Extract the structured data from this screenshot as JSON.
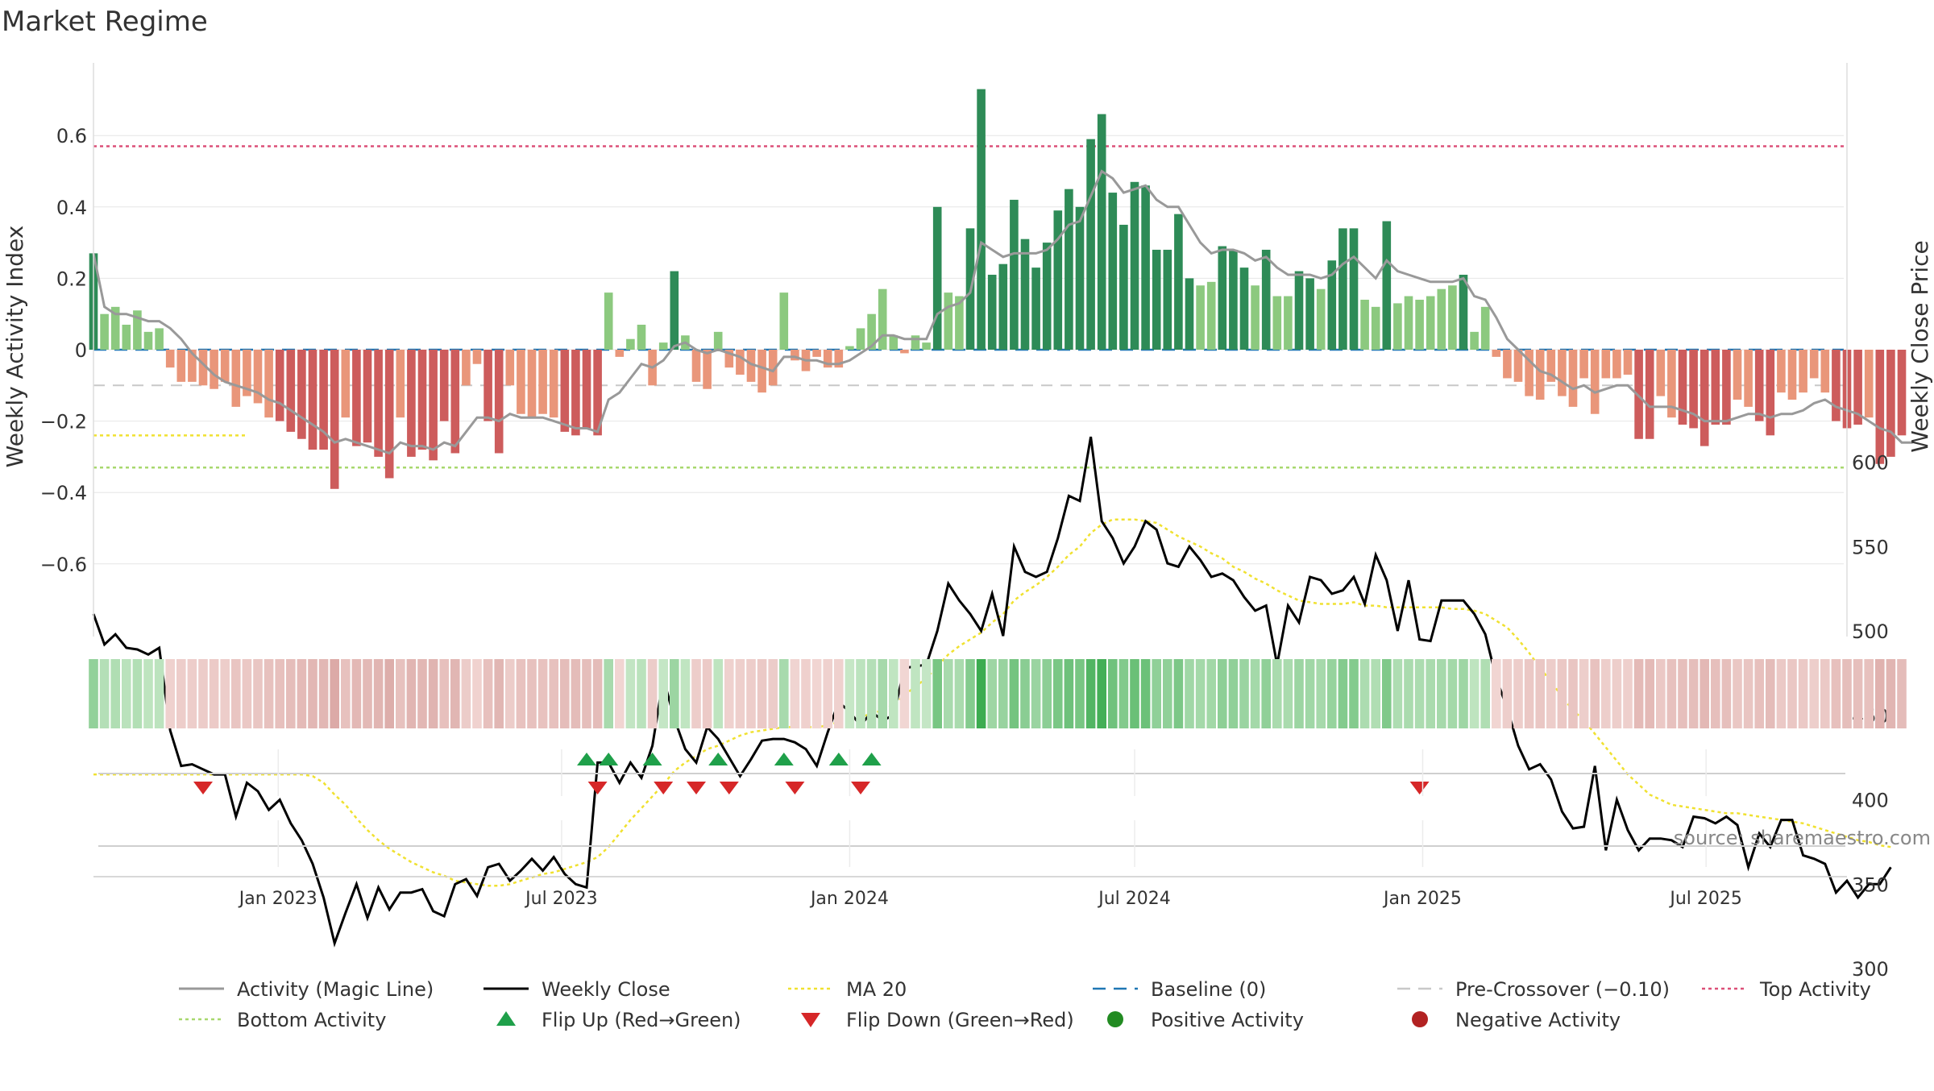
{
  "title": "Market Regime",
  "source": "source: sharemaestro.com",
  "colors": {
    "pos_strong": "#2e8b57",
    "pos_weak": "#8cc97f",
    "neg_strong": "#cd5c5c",
    "neg_weak": "#e9967a",
    "close": "#000000",
    "magic": "#999999",
    "ma20": "#f0e130",
    "baseline": "#1f77b4",
    "precross": "#c8c8c8",
    "top": "#dc5078",
    "bottom": "#a8d86e",
    "flip_up": "#1fa04a",
    "flip_down": "#d62728",
    "pos_dot": "#228b22",
    "neg_dot": "#b22222"
  },
  "chart_data": {
    "type": "bar",
    "title": "Market Regime",
    "xlabel": "",
    "ylabel": "Weekly Activity Index",
    "y2label": "Weekly Close Price",
    "ylim": [
      -0.8,
      0.8
    ],
    "y2lim": [
      300,
      630
    ],
    "yticks": [
      0.6,
      0.4,
      0.2,
      0,
      -0.2,
      -0.4,
      -0.6
    ],
    "yticklabels": [
      "0.6",
      "0.4",
      "0.2",
      "0",
      "−0.2",
      "−0.4",
      "−0.6"
    ],
    "y2ticks": [
      600,
      550,
      500,
      450,
      400,
      350,
      300
    ],
    "y2ticklabels": [
      "600",
      "550",
      "500",
      "450",
      "400",
      "350",
      "300"
    ],
    "x_start": "2022-09-05",
    "x_end": "2025-09-29",
    "x_step_days": 7,
    "xticks": [
      "2023-01-01",
      "2023-07-01",
      "2024-01-01",
      "2024-07-01",
      "2025-01-01",
      "2025-07-01"
    ],
    "xticklabels": [
      "Jan 2023",
      "Jul 2023",
      "Jan 2024",
      "Jul 2024",
      "Jan 2025",
      "Jul 2025"
    ],
    "reference_lines": {
      "top_activity": 0.57,
      "bottom_activity": -0.33,
      "pre_crossover": -0.1,
      "baseline": 0,
      "ma20_left_level": -0.24
    },
    "activity": [
      0.27,
      0.1,
      0.12,
      0.07,
      0.11,
      0.05,
      0.06,
      -0.05,
      -0.09,
      -0.09,
      -0.1,
      -0.11,
      -0.09,
      -0.16,
      -0.13,
      -0.15,
      -0.19,
      -0.2,
      -0.23,
      -0.25,
      -0.28,
      -0.28,
      -0.39,
      -0.19,
      -0.27,
      -0.26,
      -0.3,
      -0.36,
      -0.19,
      -0.3,
      -0.28,
      -0.31,
      -0.2,
      -0.29,
      -0.1,
      -0.04,
      -0.2,
      -0.29,
      -0.1,
      -0.18,
      -0.19,
      -0.18,
      -0.19,
      -0.23,
      -0.24,
      -0.22,
      -0.24,
      0.16,
      -0.02,
      0.03,
      0.07,
      -0.1,
      0.02,
      0.22,
      0.04,
      -0.09,
      -0.11,
      0.05,
      -0.05,
      -0.07,
      -0.09,
      -0.12,
      -0.1,
      0.16,
      -0.03,
      -0.06,
      -0.02,
      -0.05,
      -0.05,
      0.01,
      0.06,
      0.1,
      0.17,
      0.04,
      -0.01,
      0.04,
      0.02,
      0.4,
      0.16,
      0.15,
      0.34,
      0.73,
      0.21,
      0.24,
      0.42,
      0.31,
      0.23,
      0.3,
      0.39,
      0.45,
      0.4,
      0.59,
      0.66,
      0.44,
      0.35,
      0.47,
      0.46,
      0.28,
      0.28,
      0.38,
      0.2,
      0.18,
      0.19,
      0.29,
      0.28,
      0.23,
      0.18,
      0.28,
      0.15,
      0.15,
      0.22,
      0.2,
      0.17,
      0.25,
      0.34,
      0.34,
      0.14,
      0.12,
      0.36,
      0.13,
      0.15,
      0.14,
      0.15,
      0.17,
      0.18,
      0.21,
      0.05,
      0.12,
      -0.02,
      -0.08,
      -0.09,
      -0.13,
      -0.14,
      -0.09,
      -0.13,
      -0.16,
      -0.08,
      -0.18,
      -0.08,
      -0.08,
      -0.07,
      -0.25,
      -0.25,
      -0.13,
      -0.19,
      -0.21,
      -0.22,
      -0.27,
      -0.21,
      -0.21,
      -0.14,
      -0.16,
      -0.2,
      -0.24,
      -0.12,
      -0.14,
      -0.12,
      -0.08,
      -0.12,
      -0.2,
      -0.22,
      -0.21,
      -0.19,
      -0.32,
      -0.3,
      -0.24
    ],
    "weekly_close": [
      510,
      492,
      498,
      490,
      489,
      486,
      490,
      441,
      420,
      421,
      418,
      415,
      415,
      390,
      410,
      405,
      394,
      400,
      386,
      376,
      362,
      342,
      315,
      333,
      350,
      330,
      348,
      335,
      345,
      345,
      347,
      334,
      331,
      350,
      353,
      343,
      360,
      362,
      352,
      358,
      365,
      358,
      366,
      356,
      350,
      348,
      422,
      422,
      410,
      422,
      413,
      432,
      472,
      448,
      430,
      422,
      443,
      436,
      425,
      414,
      424,
      435,
      436,
      436,
      434,
      430,
      420,
      440,
      458,
      452,
      444,
      452,
      447,
      450,
      478,
      479,
      480,
      500,
      528,
      518,
      510,
      500,
      522,
      497,
      550,
      535,
      532,
      535,
      555,
      580,
      577,
      615,
      565,
      555,
      540,
      550,
      565,
      560,
      540,
      538,
      550,
      542,
      532,
      534,
      530,
      520,
      512,
      515,
      480,
      515,
      505,
      532,
      530,
      522,
      524,
      532,
      516,
      545,
      530,
      500,
      530,
      495,
      494,
      518,
      518,
      518,
      510,
      498,
      472,
      454,
      432,
      418,
      421,
      412,
      393,
      383,
      384,
      420,
      370,
      400,
      382,
      370,
      377,
      377,
      376,
      372,
      390,
      389,
      386,
      390,
      385,
      360,
      380,
      372,
      388,
      388,
      367,
      365,
      362,
      345,
      352,
      342,
      350,
      350,
      360
    ],
    "magic_line": [
      0.27,
      0.12,
      0.1,
      0.1,
      0.09,
      0.08,
      0.08,
      0.06,
      0.03,
      -0.01,
      -0.04,
      -0.07,
      -0.09,
      -0.1,
      -0.11,
      -0.12,
      -0.14,
      -0.15,
      -0.17,
      -0.19,
      -0.21,
      -0.23,
      -0.26,
      -0.25,
      -0.26,
      -0.27,
      -0.28,
      -0.29,
      -0.26,
      -0.27,
      -0.27,
      -0.28,
      -0.26,
      -0.27,
      -0.23,
      -0.19,
      -0.19,
      -0.2,
      -0.18,
      -0.19,
      -0.19,
      -0.19,
      -0.2,
      -0.21,
      -0.22,
      -0.22,
      -0.23,
      -0.14,
      -0.12,
      -0.08,
      -0.04,
      -0.05,
      -0.03,
      0.01,
      0.02,
      0.0,
      -0.01,
      0.0,
      -0.01,
      -0.02,
      -0.04,
      -0.05,
      -0.06,
      -0.02,
      -0.02,
      -0.03,
      -0.03,
      -0.04,
      -0.04,
      -0.03,
      -0.01,
      0.01,
      0.04,
      0.04,
      0.03,
      0.03,
      0.03,
      0.1,
      0.12,
      0.13,
      0.16,
      0.3,
      0.28,
      0.26,
      0.27,
      0.27,
      0.27,
      0.28,
      0.31,
      0.35,
      0.36,
      0.43,
      0.5,
      0.48,
      0.44,
      0.45,
      0.46,
      0.42,
      0.4,
      0.4,
      0.35,
      0.3,
      0.27,
      0.28,
      0.28,
      0.27,
      0.25,
      0.26,
      0.23,
      0.21,
      0.21,
      0.21,
      0.2,
      0.21,
      0.24,
      0.26,
      0.23,
      0.2,
      0.25,
      0.22,
      0.21,
      0.2,
      0.19,
      0.19,
      0.19,
      0.2,
      0.15,
      0.14,
      0.09,
      0.03,
      0.0,
      -0.03,
      -0.06,
      -0.07,
      -0.09,
      -0.11,
      -0.1,
      -0.12,
      -0.11,
      -0.1,
      -0.1,
      -0.13,
      -0.16,
      -0.16,
      -0.16,
      -0.17,
      -0.18,
      -0.2,
      -0.2,
      -0.2,
      -0.19,
      -0.18,
      -0.18,
      -0.19,
      -0.18,
      -0.18,
      -0.17,
      -0.15,
      -0.14,
      -0.16,
      -0.17,
      -0.18,
      -0.2,
      -0.22,
      -0.23,
      -0.26,
      -0.26
    ],
    "ma20": [
      415,
      415,
      415,
      415,
      415,
      415,
      415,
      415,
      415,
      415,
      415,
      415,
      415,
      415,
      415,
      415,
      415,
      415,
      415,
      415,
      414,
      410,
      403,
      397,
      389,
      382,
      376,
      371,
      367,
      363,
      360,
      357,
      355,
      352,
      351,
      350,
      349,
      349,
      350,
      352,
      354,
      356,
      357,
      359,
      361,
      363,
      366,
      372,
      380,
      388,
      395,
      402,
      409,
      417,
      422,
      426,
      430,
      432,
      435,
      438,
      440,
      441,
      442,
      443,
      443,
      443,
      443,
      444,
      446,
      448,
      449,
      451,
      453,
      456,
      462,
      467,
      472,
      479,
      486,
      491,
      495,
      499,
      505,
      510,
      518,
      523,
      527,
      532,
      538,
      545,
      550,
      558,
      563,
      566,
      566,
      566,
      565,
      564,
      560,
      556,
      553,
      550,
      546,
      543,
      538,
      535,
      531,
      528,
      524,
      521,
      518,
      517,
      516,
      516,
      516,
      517,
      515,
      515,
      514,
      514,
      514,
      514,
      514,
      514,
      513,
      513,
      512,
      510,
      506,
      502,
      495,
      487,
      478,
      470,
      461,
      453,
      447,
      439,
      431,
      423,
      415,
      409,
      403,
      400,
      397,
      396,
      395,
      394,
      393,
      392,
      392,
      391,
      390,
      389,
      388,
      387,
      386,
      384,
      382,
      380,
      378,
      376,
      375,
      373,
      372
    ],
    "flip_up_dates": [
      "2023-07-17",
      "2023-07-31",
      "2023-08-28",
      "2023-10-09",
      "2023-11-20",
      "2023-12-25",
      "2024-01-15"
    ],
    "flip_down_dates": [
      "2022-11-14",
      "2023-07-24",
      "2023-09-04",
      "2023-09-25",
      "2023-10-16",
      "2023-11-27",
      "2024-01-08",
      "2024-12-30"
    ],
    "legend": [
      {
        "label": "Activity (Magic Line)",
        "kind": "line",
        "color": "#999999"
      },
      {
        "label": "Weekly Close",
        "kind": "line",
        "color": "#000000"
      },
      {
        "label": "MA 20",
        "kind": "dotted",
        "color": "#f0e130"
      },
      {
        "label": "Baseline (0)",
        "kind": "dashed",
        "color": "#1f77b4"
      },
      {
        "label": "Pre-Crossover (−0.10)",
        "kind": "dashed",
        "color": "#c8c8c8"
      },
      {
        "label": "Top Activity",
        "kind": "dotted",
        "color": "#dc5078"
      },
      {
        "label": "Bottom Activity",
        "kind": "dotted",
        "color": "#a8d86e"
      },
      {
        "label": "Flip Up (Red→Green)",
        "kind": "tri-up",
        "color": "#1fa04a"
      },
      {
        "label": "Flip Down (Green→Red)",
        "kind": "tri-down",
        "color": "#d62728"
      },
      {
        "label": "Positive Activity",
        "kind": "dot",
        "color": "#228b22"
      },
      {
        "label": "Negative Activity",
        "kind": "dot",
        "color": "#b22222"
      }
    ],
    "legend_position": "bottom"
  }
}
